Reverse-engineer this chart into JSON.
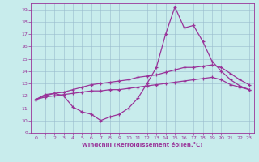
{
  "background_color": "#c8ecec",
  "line_color": "#993399",
  "grid_color": "#99bbcc",
  "xlabel": "Windchill (Refroidissement éolien,°C)",
  "xlim": [
    -0.5,
    23.5
  ],
  "ylim": [
    9,
    19.5
  ],
  "yticks": [
    9,
    10,
    11,
    12,
    13,
    14,
    15,
    16,
    17,
    18,
    19
  ],
  "xticks": [
    0,
    1,
    2,
    3,
    4,
    5,
    6,
    7,
    8,
    9,
    10,
    11,
    12,
    13,
    14,
    15,
    16,
    17,
    18,
    19,
    20,
    21,
    22,
    23
  ],
  "line1_x": [
    0,
    1,
    2,
    3,
    4,
    5,
    6,
    7,
    8,
    9,
    10,
    11,
    12,
    13,
    14,
    15,
    16,
    17,
    18,
    19,
    20,
    21,
    22,
    23
  ],
  "line1_y": [
    11.7,
    12.1,
    12.2,
    12.0,
    11.1,
    10.7,
    10.5,
    10.0,
    10.3,
    10.5,
    11.0,
    11.8,
    13.0,
    14.3,
    17.0,
    19.2,
    17.5,
    17.7,
    16.4,
    14.8,
    14.0,
    13.3,
    12.8,
    12.5
  ],
  "line2_x": [
    0,
    1,
    2,
    3,
    4,
    5,
    6,
    7,
    8,
    9,
    10,
    11,
    12,
    13,
    14,
    15,
    16,
    17,
    18,
    19,
    20,
    21,
    22,
    23
  ],
  "line2_y": [
    11.7,
    12.0,
    12.2,
    12.3,
    12.5,
    12.7,
    12.9,
    13.0,
    13.1,
    13.2,
    13.3,
    13.5,
    13.6,
    13.7,
    13.9,
    14.1,
    14.3,
    14.3,
    14.4,
    14.5,
    14.3,
    13.8,
    13.3,
    12.9
  ],
  "line3_x": [
    0,
    1,
    2,
    3,
    4,
    5,
    6,
    7,
    8,
    9,
    10,
    11,
    12,
    13,
    14,
    15,
    16,
    17,
    18,
    19,
    20,
    21,
    22,
    23
  ],
  "line3_y": [
    11.7,
    11.9,
    12.0,
    12.1,
    12.2,
    12.3,
    12.4,
    12.4,
    12.5,
    12.5,
    12.6,
    12.7,
    12.8,
    12.9,
    13.0,
    13.1,
    13.2,
    13.3,
    13.4,
    13.5,
    13.3,
    12.9,
    12.7,
    12.5
  ]
}
